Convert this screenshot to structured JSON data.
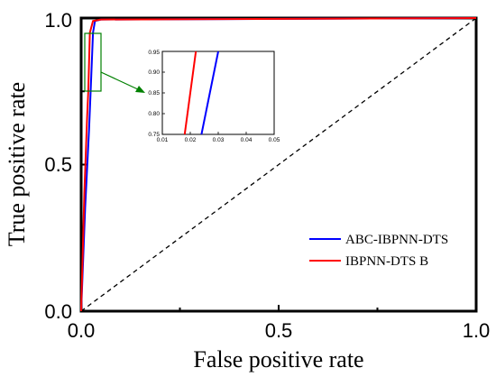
{
  "chart_data": {
    "type": "line",
    "title": "",
    "xlabel": "False positive rate",
    "ylabel": "True positive rate",
    "xlim": [
      0,
      1
    ],
    "ylim": [
      0,
      1
    ],
    "x_ticks": [
      "0.0",
      "0.5",
      "1.0"
    ],
    "y_ticks": [
      "0.0",
      "0.5",
      "1.0"
    ],
    "grid": false,
    "legend_position": "lower-right",
    "series": [
      {
        "name": "ABC-IBPNN-DTS",
        "color": "#0000ff",
        "x": [
          0,
          0.01,
          0.02,
          0.024,
          0.027,
          0.03,
          0.035,
          0.05,
          1.0
        ],
        "y": [
          0,
          0.35,
          0.62,
          0.75,
          0.85,
          0.95,
          0.99,
          0.995,
          1.0
        ]
      },
      {
        "name": "IBPNN-DTS B",
        "color": "#ff0000",
        "x": [
          0,
          0.008,
          0.015,
          0.018,
          0.02,
          0.022,
          0.03,
          0.05,
          1.0
        ],
        "y": [
          0,
          0.4,
          0.66,
          0.75,
          0.85,
          0.95,
          0.99,
          0.995,
          1.0
        ]
      }
    ],
    "reference_line": {
      "style": "dashed",
      "color": "#000000",
      "x": [
        0,
        1
      ],
      "y": [
        0,
        1
      ]
    },
    "inset": {
      "xlim": [
        0.01,
        0.05
      ],
      "ylim": [
        0.75,
        0.95
      ],
      "x_ticks": [
        "0.01",
        "0.02",
        "0.03",
        "0.04",
        "0.05"
      ],
      "y_ticks": [
        "0.75",
        "0.80",
        "0.85",
        "0.90",
        "0.95"
      ],
      "highlight_color": "#008000",
      "arrow_color": "#008000"
    }
  }
}
